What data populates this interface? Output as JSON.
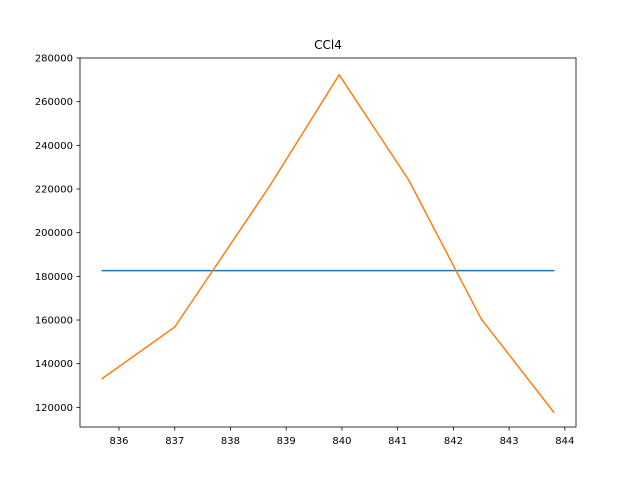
{
  "chart_data": {
    "type": "line",
    "title": "CCl4",
    "xlabel": "",
    "ylabel": "",
    "xlim": [
      835.3,
      844.2
    ],
    "ylim": [
      111000,
      280000
    ],
    "grid": false,
    "x_ticks": [
      836,
      837,
      838,
      839,
      840,
      841,
      842,
      843,
      844
    ],
    "y_ticks": [
      120000,
      140000,
      160000,
      180000,
      200000,
      220000,
      240000,
      260000,
      280000
    ],
    "series": [
      {
        "color": "#1f77b4",
        "points": [
          [
            835.7,
            182600
          ],
          [
            843.8,
            182600
          ]
        ]
      },
      {
        "color": "#ff7f0e",
        "points": [
          [
            835.7,
            133200
          ],
          [
            837.0,
            156800
          ],
          [
            838.7,
            221200
          ],
          [
            839.95,
            272300
          ],
          [
            841.2,
            224000
          ],
          [
            842.5,
            160500
          ],
          [
            843.8,
            117800
          ]
        ]
      }
    ]
  }
}
